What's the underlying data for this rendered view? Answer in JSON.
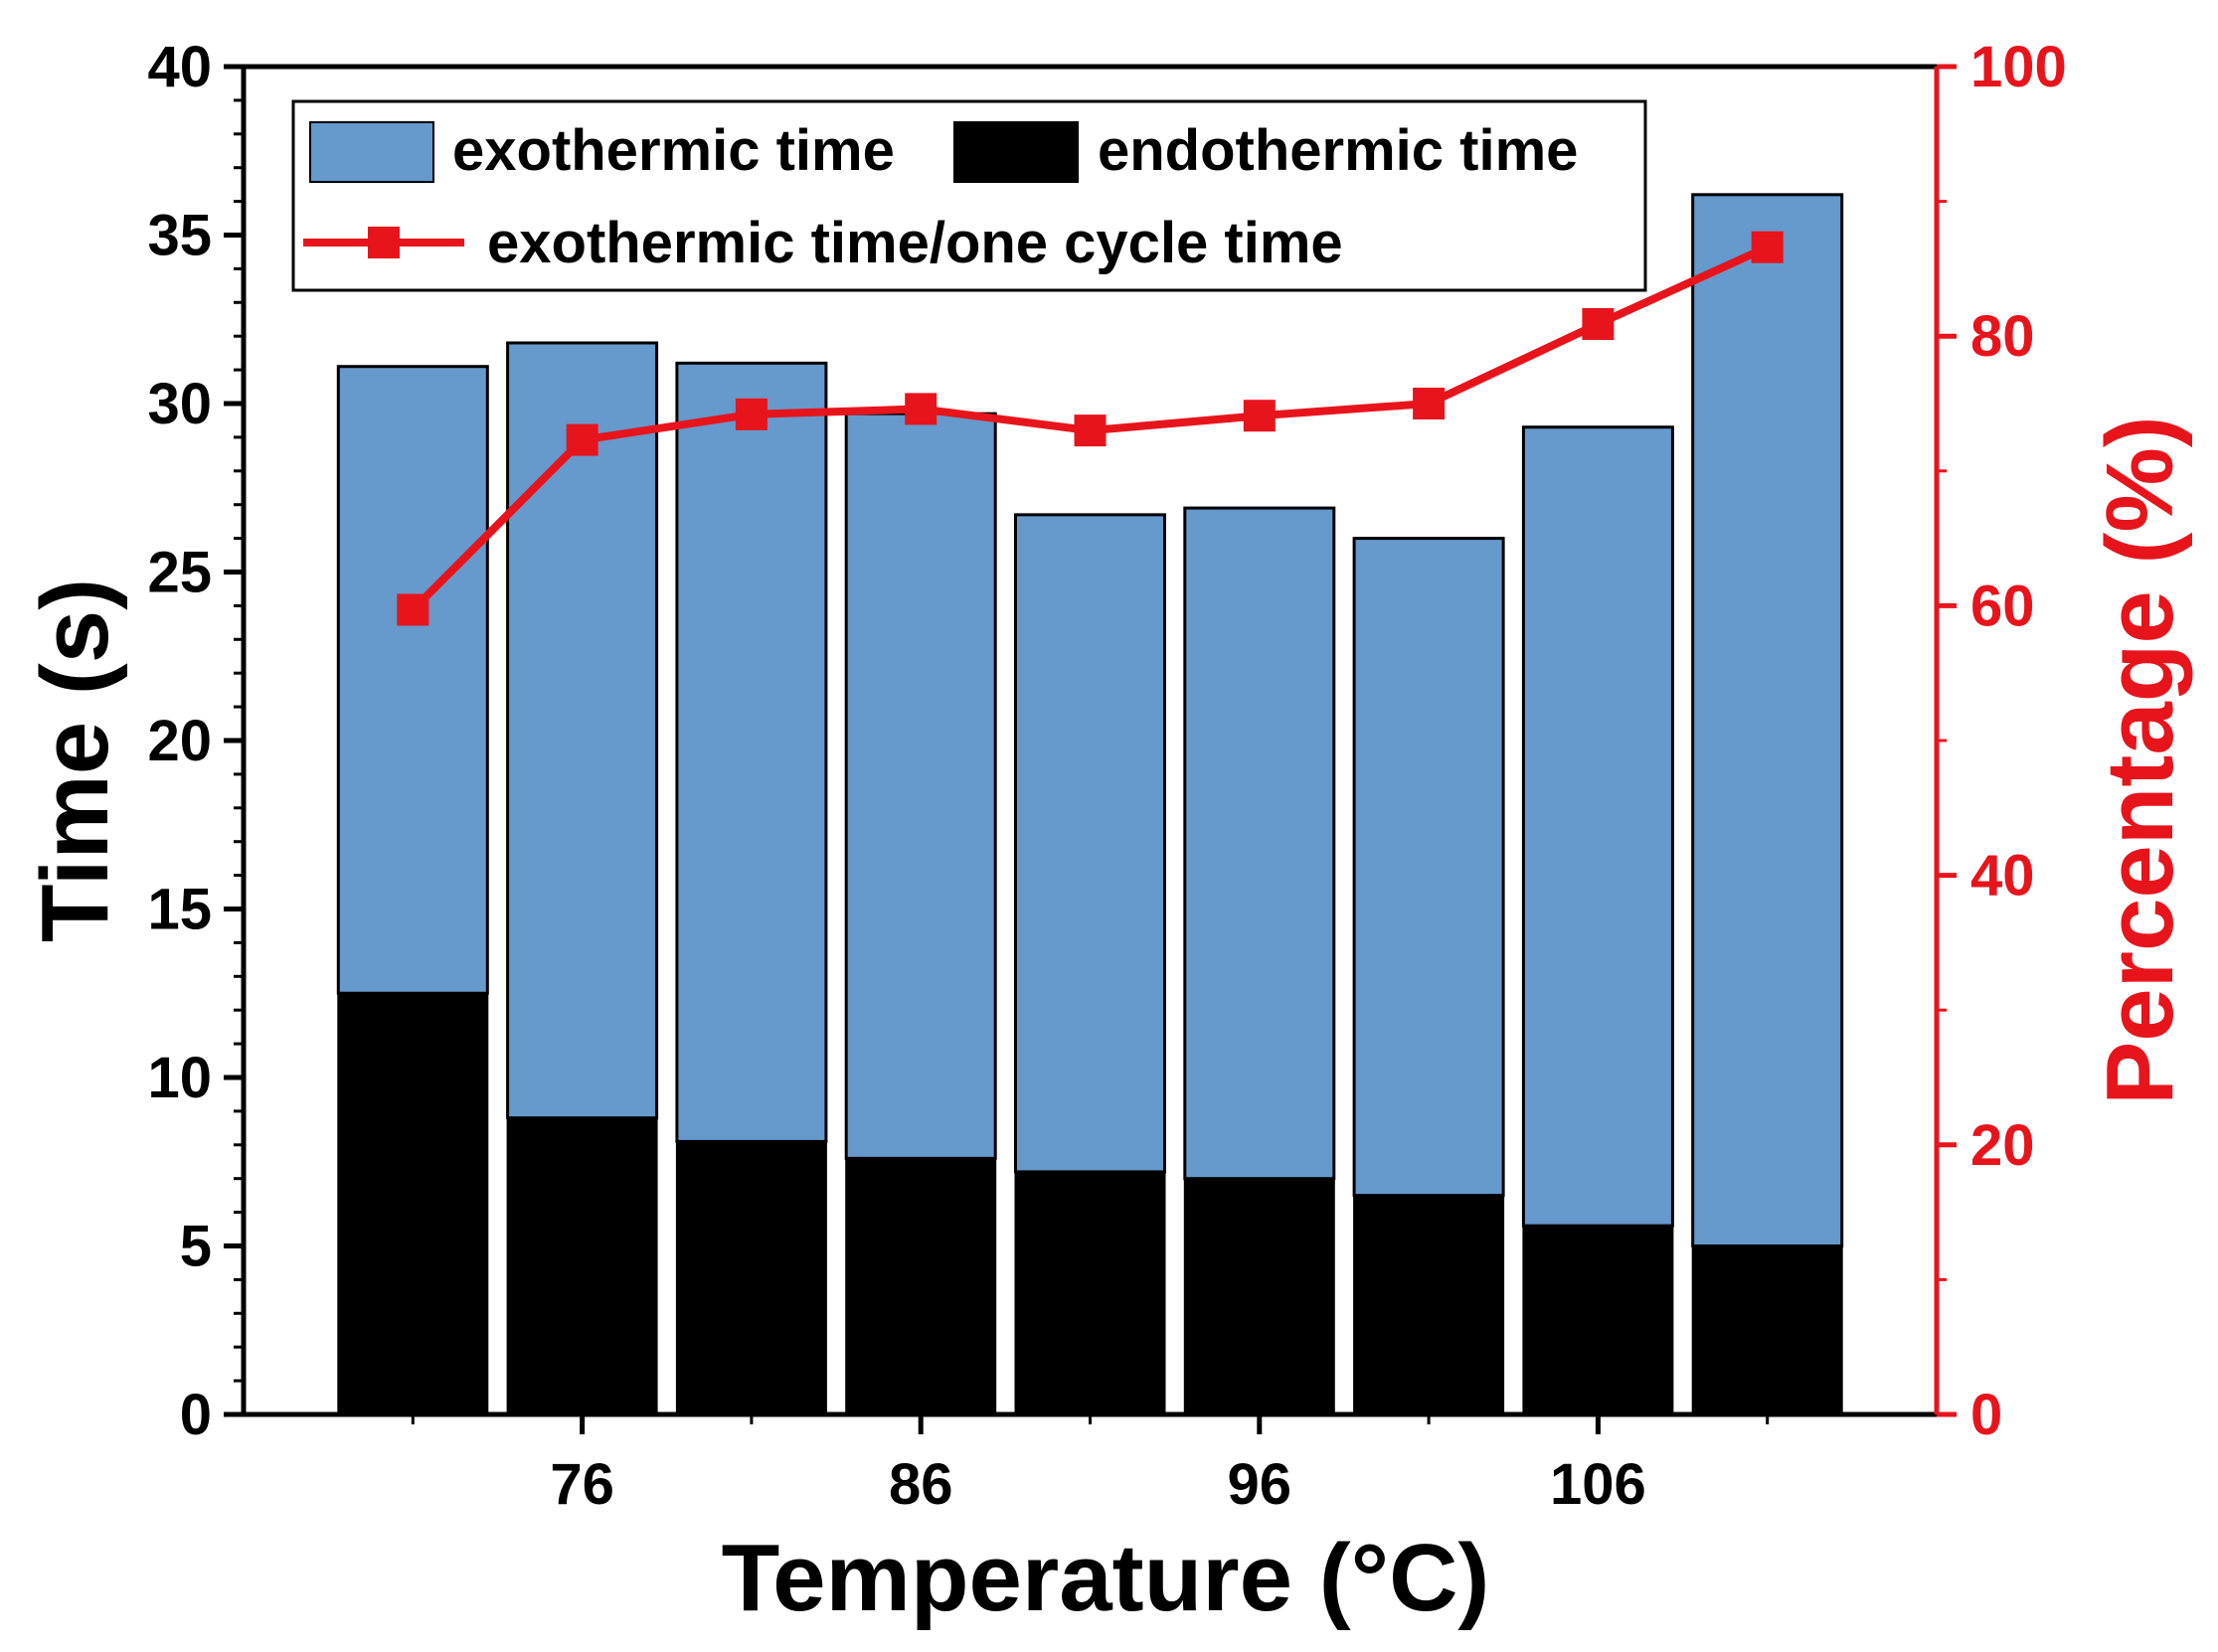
{
  "chart_data": {
    "type": "bar",
    "stacked": true,
    "x": [
      71,
      76,
      81,
      86,
      91,
      96,
      101,
      106,
      111
    ],
    "x_tick_labels": [
      "76",
      "86",
      "96",
      "106"
    ],
    "x_tick_values": [
      76,
      86,
      96,
      106
    ],
    "xlabel": "Temperature (°C)",
    "ylabel": "Time (s)",
    "y2label": "Percentage (%)",
    "ylim": [
      0,
      40
    ],
    "y2lim": [
      0,
      100
    ],
    "y_ticks": [
      0,
      5,
      10,
      15,
      20,
      25,
      30,
      35,
      40
    ],
    "y2_ticks": [
      0,
      20,
      40,
      60,
      80,
      100
    ],
    "series": [
      {
        "name": "endothermic time",
        "kind": "bar",
        "color": "#000000",
        "values": [
          12.5,
          8.8,
          8.1,
          7.6,
          7.2,
          7.0,
          6.5,
          5.6,
          5.0
        ]
      },
      {
        "name": "exothermic time",
        "kind": "bar",
        "color": "#6699cc",
        "values": [
          18.6,
          23.0,
          23.1,
          22.1,
          19.5,
          19.9,
          19.5,
          23.7,
          31.2
        ]
      },
      {
        "name": "exothermic time/one cycle time",
        "kind": "line",
        "axis": "right",
        "color": "#e8141c",
        "values": [
          59.7,
          72.3,
          74.2,
          74.6,
          73.0,
          74.1,
          75.0,
          80.9,
          86.6
        ]
      }
    ],
    "legend": {
      "position": "top-left",
      "entries": [
        "exothermic time",
        "endothermic time",
        "exothermic time/one cycle time"
      ]
    }
  }
}
